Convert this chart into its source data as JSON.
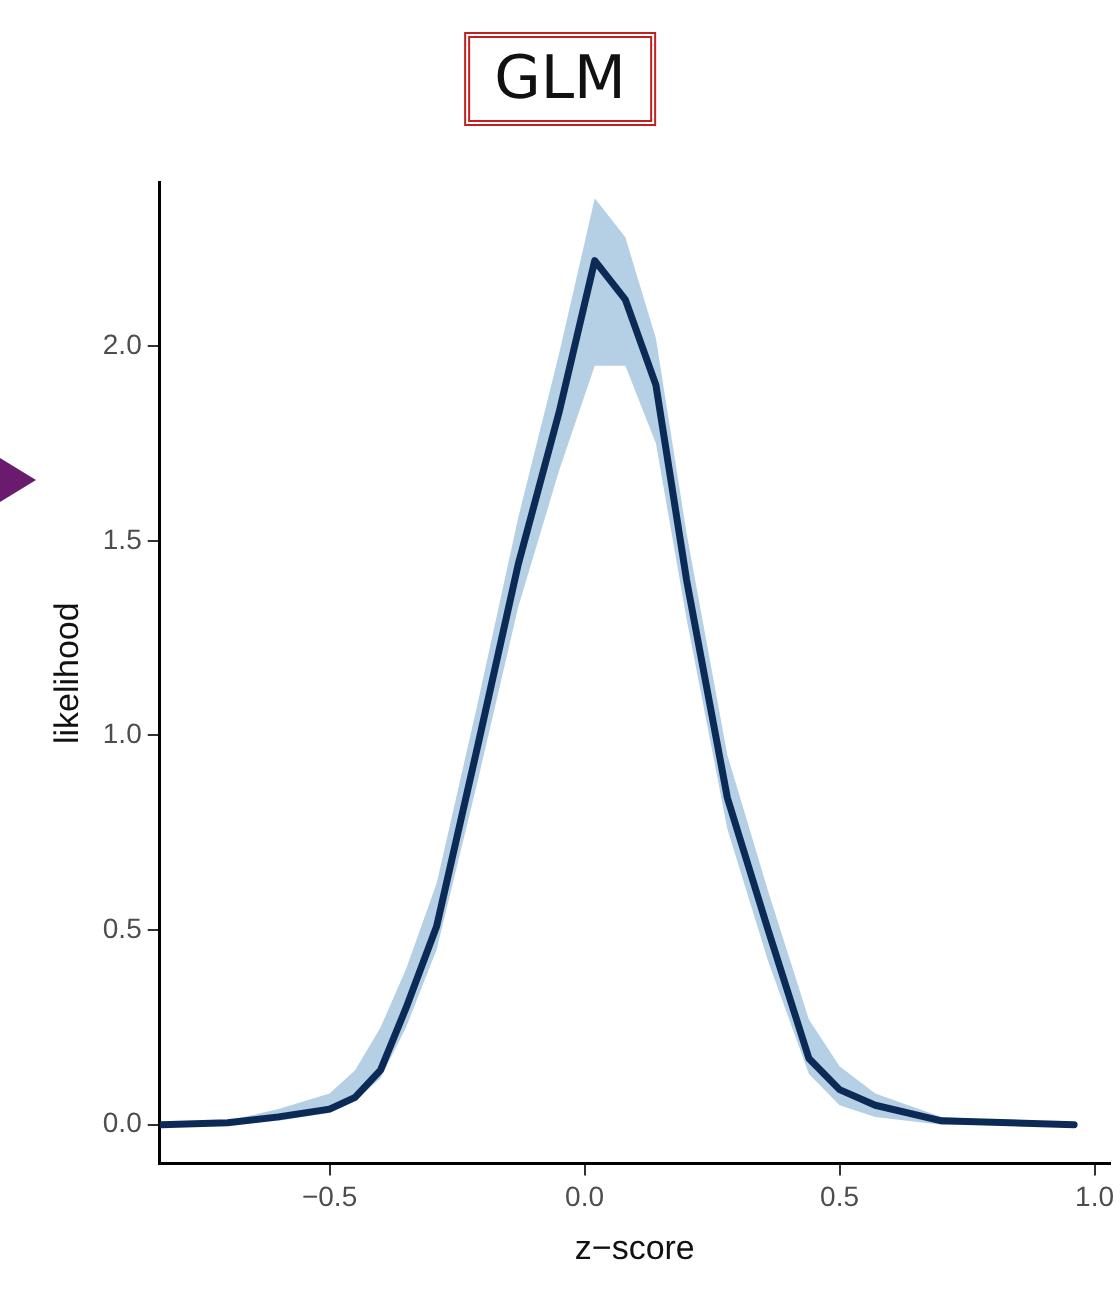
{
  "chart_data": {
    "type": "line",
    "title": "GLM",
    "xlabel": "z−score",
    "ylabel": "likelihood",
    "x": [
      -0.83,
      -0.7,
      -0.6,
      -0.5,
      -0.45,
      -0.4,
      -0.35,
      -0.29,
      -0.21,
      -0.13,
      -0.05,
      0.02,
      0.08,
      0.14,
      0.2,
      0.28,
      0.36,
      0.44,
      0.5,
      0.57,
      0.7,
      0.96
    ],
    "series": [
      {
        "color": "#0b2a55",
        "values": [
          0,
          0.005,
          0.02,
          0.04,
          0.07,
          0.14,
          0.3,
          0.51,
          0.97,
          1.44,
          1.83,
          2.22,
          2.12,
          1.9,
          1.4,
          0.84,
          0.5,
          0.17,
          0.09,
          0.05,
          0.01,
          0
        ],
        "lower": [
          0,
          0,
          0.01,
          0.03,
          0.06,
          0.12,
          0.25,
          0.45,
          0.88,
          1.33,
          1.68,
          1.95,
          1.95,
          1.75,
          1.3,
          0.76,
          0.42,
          0.13,
          0.05,
          0.02,
          0,
          0
        ],
        "upper": [
          0,
          0.01,
          0.04,
          0.08,
          0.14,
          0.25,
          0.4,
          0.62,
          1.08,
          1.56,
          1.98,
          2.38,
          2.28,
          2.02,
          1.52,
          0.95,
          0.6,
          0.27,
          0.15,
          0.08,
          0.02,
          0
        ]
      }
    ],
    "xlim": [
      -0.833,
      1.03
    ],
    "ylim": [
      -0.1,
      2.42
    ],
    "xticks": [
      {
        "value": -0.5,
        "label": "−0.5"
      },
      {
        "value": 0,
        "label": "0.0"
      },
      {
        "value": 0.5,
        "label": "0.5"
      },
      {
        "value": 1,
        "label": "1.0"
      }
    ],
    "yticks": [
      {
        "value": 0,
        "label": "0.0"
      },
      {
        "value": 0.5,
        "label": "0.5"
      },
      {
        "value": 1,
        "label": "1.0"
      },
      {
        "value": 1.5,
        "label": "1.5"
      },
      {
        "value": 2,
        "label": "2.0"
      }
    ],
    "grid": false,
    "legend": false,
    "marker": "none",
    "line_style": "solid"
  }
}
